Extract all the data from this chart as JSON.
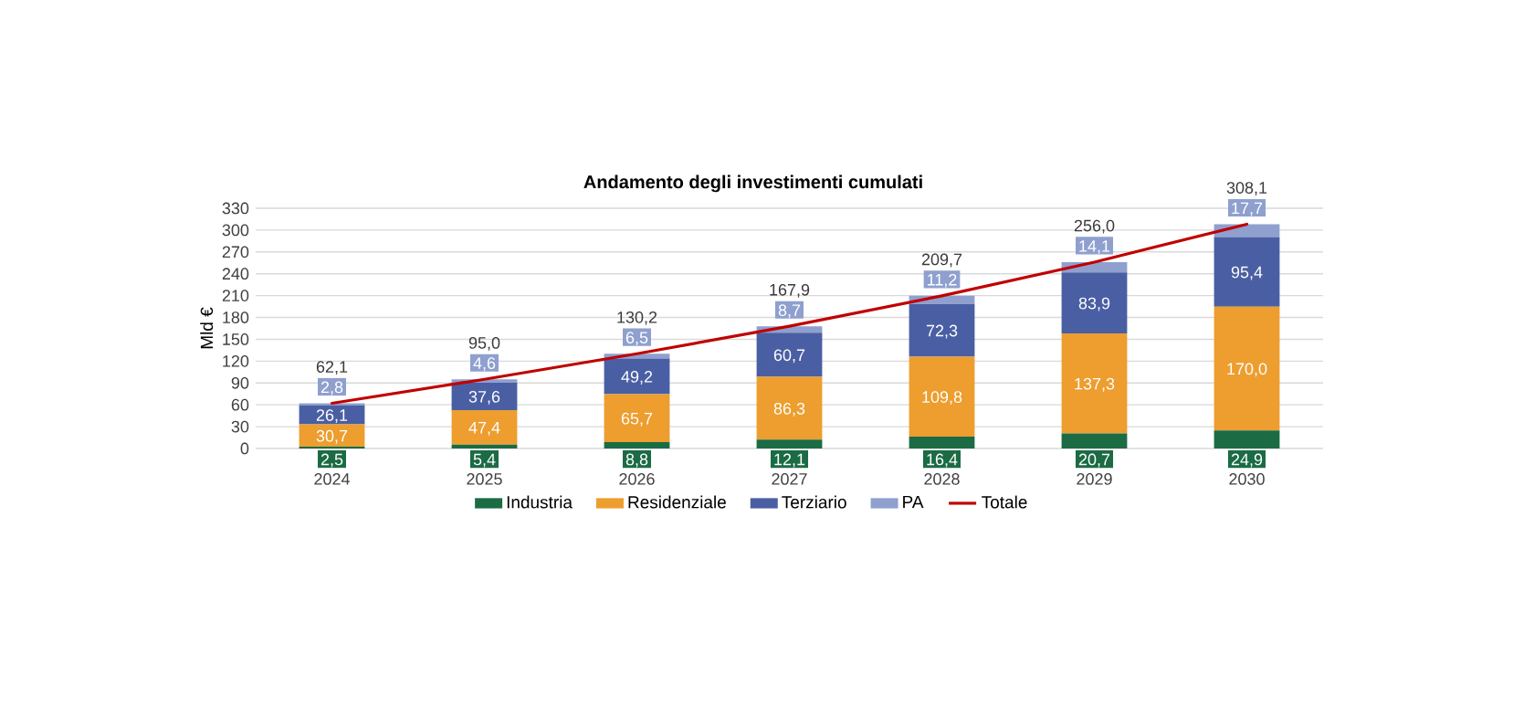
{
  "chart_data": {
    "type": "bar",
    "title": "Andamento degli investimenti cumulati",
    "ylabel": "Mld €",
    "stacked": true,
    "grid": "y",
    "legend": "bottom",
    "categories": [
      "2024",
      "2025",
      "2026",
      "2027",
      "2028",
      "2029",
      "2030"
    ],
    "ylim": [
      0,
      330
    ],
    "yticks": [
      0,
      30,
      60,
      90,
      120,
      150,
      180,
      210,
      240,
      270,
      300,
      330
    ],
    "series": [
      {
        "name": "Industria",
        "color": "#1b6b44",
        "values": [
          2.5,
          5.4,
          8.8,
          12.1,
          16.4,
          20.7,
          24.9
        ],
        "value_labels": [
          "2,5",
          "5,4",
          "8,8",
          "12,1",
          "16,4",
          "20,7",
          "24,9"
        ]
      },
      {
        "name": "Residenziale",
        "color": "#ed9e2f",
        "values": [
          30.7,
          47.4,
          65.7,
          86.3,
          109.8,
          137.3,
          170.0
        ],
        "value_labels": [
          "30,7",
          "47,4",
          "65,7",
          "86,3",
          "109,8",
          "137,3",
          "170,0"
        ]
      },
      {
        "name": "Terziario",
        "color": "#4a5fa3",
        "values": [
          26.1,
          37.6,
          49.2,
          60.7,
          72.3,
          83.9,
          95.4
        ],
        "value_labels": [
          "26,1",
          "37,6",
          "49,2",
          "60,7",
          "72,3",
          "83,9",
          "95,4"
        ]
      },
      {
        "name": "PA",
        "color": "#8fa0cf",
        "values": [
          2.8,
          4.6,
          6.5,
          8.7,
          11.2,
          14.1,
          17.7
        ],
        "value_labels": [
          "2,8",
          "4,6",
          "6,5",
          "8,7",
          "11,2",
          "14,1",
          "17,7"
        ]
      },
      {
        "name": "Totale",
        "type": "line",
        "color": "#c00000",
        "values": [
          62.1,
          95.0,
          130.2,
          167.9,
          209.7,
          256.0,
          308.1
        ],
        "value_labels": [
          "62,1",
          "95,0",
          "130,2",
          "167,9",
          "209,7",
          "256,0",
          "308,1"
        ]
      }
    ]
  }
}
